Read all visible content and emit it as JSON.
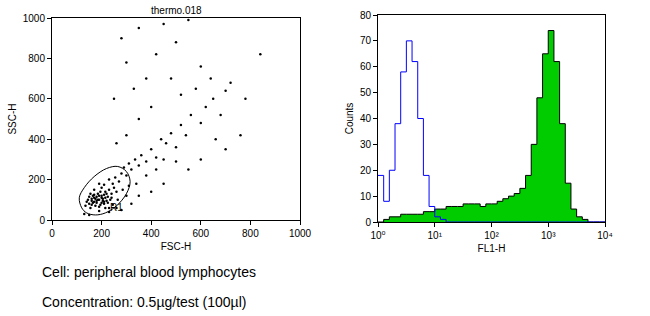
{
  "chart_data": [
    {
      "type": "scatter",
      "title": "thermo.018",
      "x_label": "FSC-H",
      "y_label": "SSC-H",
      "x": [
        150,
        160,
        170,
        180,
        190,
        200,
        210,
        175,
        185,
        195,
        205,
        215,
        165,
        155,
        225,
        230,
        240,
        220,
        170,
        180,
        190,
        200,
        210,
        160,
        145,
        235,
        250,
        245,
        260,
        195,
        185,
        175,
        205,
        215,
        225,
        165,
        135,
        140,
        200,
        210,
        230,
        255,
        270,
        280,
        290,
        300,
        310,
        320,
        335,
        350,
        360,
        380,
        400,
        420,
        440,
        460,
        480,
        500,
        520,
        540,
        560,
        600,
        620,
        650,
        700,
        130,
        150,
        260,
        300,
        340,
        380,
        420,
        450,
        500,
        260,
        300,
        350,
        400,
        330,
        380,
        420,
        500,
        280,
        350,
        450,
        550,
        600,
        480,
        250,
        300,
        520,
        580,
        640,
        680,
        720,
        780,
        760,
        840,
        660,
        600,
        550,
        700,
        450,
        400,
        350,
        320,
        280,
        230,
        190,
        170,
        155,
        190,
        215,
        245,
        265,
        285,
        310,
        210,
        190,
        200,
        180,
        170,
        220,
        160,
        150,
        240,
        230
      ],
      "values": [
        80,
        95,
        110,
        85,
        100,
        120,
        90,
        70,
        130,
        75,
        105,
        140,
        120,
        60,
        115,
        150,
        130,
        95,
        90,
        115,
        65,
        85,
        125,
        75,
        100,
        100,
        160,
        180,
        140,
        140,
        100,
        105,
        95,
        110,
        85,
        85,
        70,
        90,
        160,
        175,
        200,
        210,
        190,
        230,
        260,
        220,
        280,
        250,
        300,
        270,
        320,
        290,
        350,
        310,
        400,
        380,
        430,
        360,
        470,
        420,
        520,
        480,
        560,
        600,
        640,
        30,
        25,
        60,
        120,
        180,
        220,
        250,
        300,
        290,
        380,
        420,
        500,
        560,
        650,
        700,
        820,
        880,
        900,
        950,
        970,
        990,
        760,
        700,
        600,
        780,
        620,
        650,
        700,
        520,
        680,
        600,
        420,
        820,
        400,
        300,
        250,
        350,
        180,
        140,
        120,
        80,
        50,
        40,
        45,
        150,
        130,
        180,
        60,
        75,
        100,
        150,
        170,
        80,
        120,
        110,
        95,
        125,
        130,
        105,
        115,
        110,
        60
      ],
      "color": "#000000",
      "gate": {
        "x": [
          120,
          140,
          175,
          215,
          260,
          300,
          315,
          300,
          265,
          220,
          170,
          130,
          110,
          120
        ],
        "values": [
          60,
          35,
          25,
          35,
          70,
          130,
          190,
          240,
          265,
          255,
          215,
          160,
          110,
          60
        ]
      },
      "annotations": [
        {
          "text": "R1",
          "x": 262,
          "y": 62
        }
      ],
      "xlim": [
        0,
        1000
      ],
      "xticks": [
        0,
        200,
        400,
        600,
        800,
        1000
      ],
      "ylim": [
        0,
        1000
      ],
      "yticks": [
        0,
        200,
        400,
        600,
        800,
        1000
      ]
    },
    {
      "type": "histogram",
      "x_label": "FL1-H",
      "y_label": "Counts",
      "log": "x",
      "bins": [
        1,
        1.259,
        1.585,
        1.995,
        2.512,
        3.162,
        3.981,
        5.012,
        6.31,
        7.943,
        10,
        12.59,
        15.85,
        19.95,
        25.12,
        31.62,
        39.81,
        50.12,
        63.1,
        79.43,
        100,
        125.9,
        158.5,
        199.5,
        251.2,
        316.2,
        398.1,
        501.2,
        631,
        794.3,
        1000,
        1259,
        1585,
        1995,
        2512,
        3162,
        3981,
        5012,
        6310,
        7943,
        10000
      ],
      "series": [
        {
          "type": "area",
          "color": "#00cc00",
          "values": [
            0,
            1,
            2,
            2,
            3,
            3,
            3,
            3,
            4,
            4,
            5,
            5,
            6,
            6,
            6,
            7,
            7,
            7,
            6,
            7,
            7,
            8,
            9,
            10,
            11,
            13,
            18,
            30,
            48,
            65,
            74,
            62,
            38,
            15,
            5,
            2,
            1,
            0,
            0,
            0
          ]
        },
        {
          "type": "line",
          "color": "#0000ff",
          "values": [
            18,
            8,
            20,
            38,
            58,
            70,
            62,
            40,
            18,
            6,
            2,
            1,
            0,
            0,
            0,
            0,
            0,
            0,
            0,
            0,
            0,
            0,
            0,
            0,
            0,
            0,
            0,
            0,
            0,
            0,
            0,
            0,
            0,
            0,
            0,
            0,
            0,
            0,
            0,
            0
          ]
        }
      ],
      "xlim": [
        1,
        10000
      ],
      "xticks": [
        {
          "value": 1,
          "label": "10⁰"
        },
        {
          "value": 10,
          "label": "10¹"
        },
        {
          "value": 100,
          "label": "10²"
        },
        {
          "value": 1000,
          "label": "10³"
        },
        {
          "value": 10000,
          "label": "10⁴"
        }
      ],
      "ylim": [
        0,
        80
      ],
      "yticks": [
        0,
        10,
        20,
        30,
        40,
        50,
        60,
        70,
        80
      ]
    }
  ],
  "caption": [
    "Cell: peripheral blood lymphocytes",
    "Concentration: 0.5µg/test (100µl)"
  ]
}
